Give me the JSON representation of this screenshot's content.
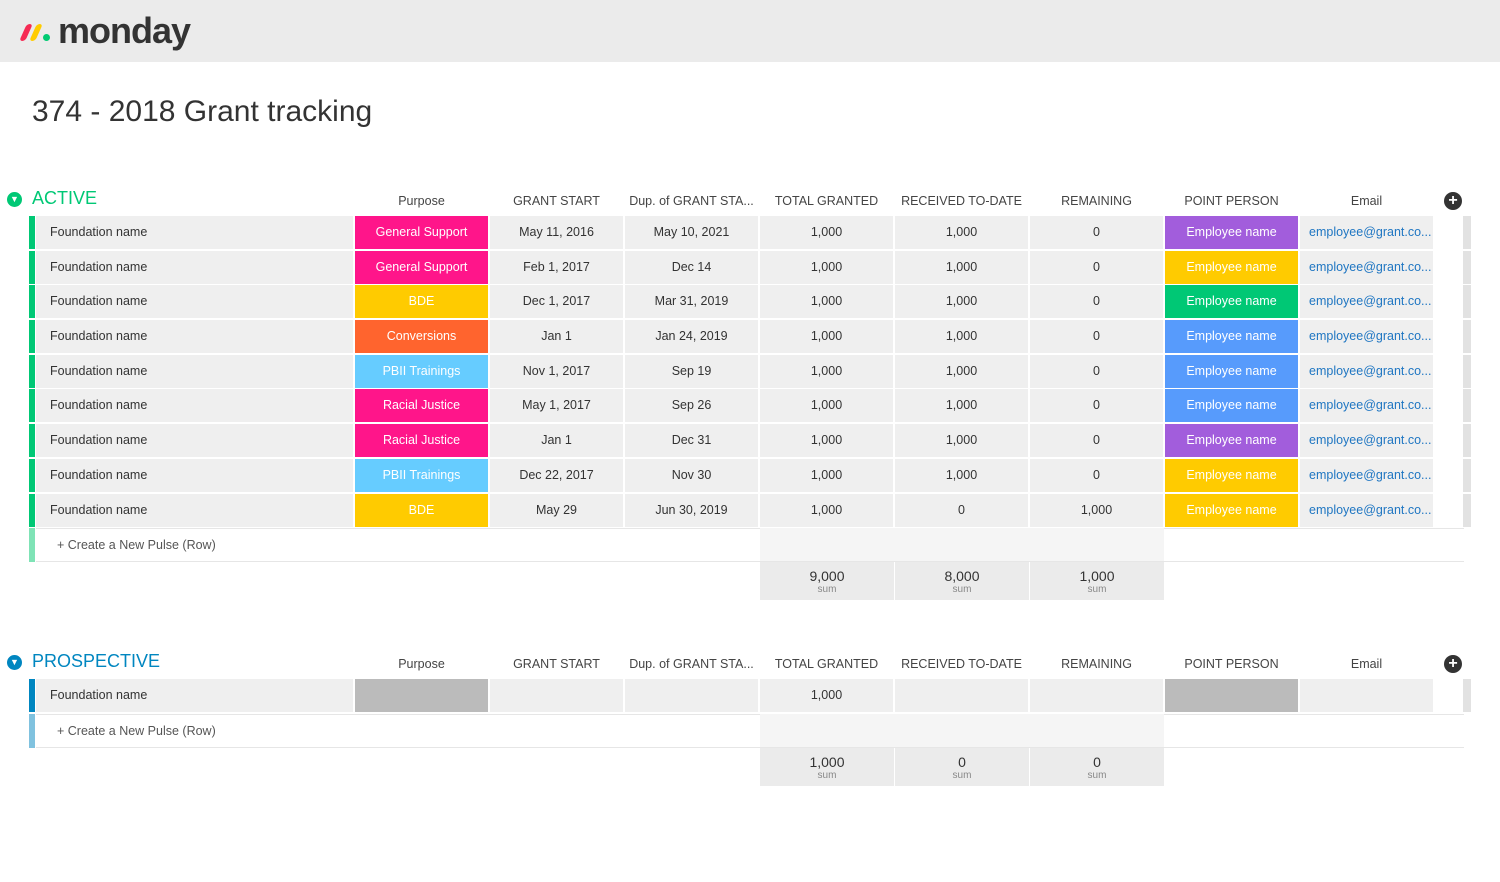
{
  "app": {
    "logo_text": "monday"
  },
  "board": {
    "title": "374 - 2018 Grant tracking"
  },
  "colors": {
    "active": "#00c875",
    "prospective": "#0086c0",
    "status_pink": "#ff158a",
    "status_yellow": "#ffcb00",
    "status_orange": "#ff642e",
    "status_lightblue": "#66ccff",
    "person_purple": "#a25ddc",
    "person_yellow": "#ffcb00",
    "person_green": "#00c875",
    "person_blue": "#579bfc",
    "empty_gray": "#bbbbbb",
    "link_blue": "#1f76c2"
  },
  "columns": [
    "Purpose",
    "GRANT START",
    "Dup. of GRANT STA...",
    "TOTAL GRANTED",
    "RECEIVED TO-DATE",
    "REMAINING",
    "POINT PERSON",
    "Email"
  ],
  "create_label": "+ Create a New Pulse (Row)",
  "sum_label": "sum",
  "groups": [
    {
      "title": "ACTIVE",
      "color": "#00c875",
      "light_color": "#7fe3b6",
      "rows": [
        {
          "name": "Foundation name",
          "purpose": "General Support",
          "purpose_color": "#ff158a",
          "start": "May 11, 2016",
          "dup": "May 10, 2021",
          "total": "1,000",
          "received": "1,000",
          "remaining": "0",
          "person": "Employee name",
          "person_color": "#a25ddc",
          "email": "employee@grant.co..."
        },
        {
          "name": "Foundation name",
          "purpose": "General Support",
          "purpose_color": "#ff158a",
          "start": "Feb 1, 2017",
          "dup": "Dec 14",
          "total": "1,000",
          "received": "1,000",
          "remaining": "0",
          "person": "Employee name",
          "person_color": "#ffcb00",
          "email": "employee@grant.co..."
        },
        {
          "name": "Foundation name",
          "purpose": "BDE",
          "purpose_color": "#ffcb00",
          "start": "Dec 1, 2017",
          "dup": "Mar 31, 2019",
          "total": "1,000",
          "received": "1,000",
          "remaining": "0",
          "person": "Employee name",
          "person_color": "#00c875",
          "email": "employee@grant.co..."
        },
        {
          "name": "Foundation name",
          "purpose": "Conversions",
          "purpose_color": "#ff642e",
          "start": "Jan 1",
          "dup": "Jan 24, 2019",
          "total": "1,000",
          "received": "1,000",
          "remaining": "0",
          "person": "Employee name",
          "person_color": "#579bfc",
          "email": "employee@grant.co..."
        },
        {
          "name": "Foundation name",
          "purpose": "PBII Trainings",
          "purpose_color": "#66ccff",
          "start": "Nov 1, 2017",
          "dup": "Sep 19",
          "total": "1,000",
          "received": "1,000",
          "remaining": "0",
          "person": "Employee name",
          "person_color": "#579bfc",
          "email": "employee@grant.co..."
        },
        {
          "name": "Foundation name",
          "purpose": "Racial Justice",
          "purpose_color": "#ff158a",
          "start": "May 1, 2017",
          "dup": "Sep 26",
          "total": "1,000",
          "received": "1,000",
          "remaining": "0",
          "person": "Employee name",
          "person_color": "#579bfc",
          "email": "employee@grant.co..."
        },
        {
          "name": "Foundation name",
          "purpose": "Racial Justice",
          "purpose_color": "#ff158a",
          "start": "Jan 1",
          "dup": "Dec 31",
          "total": "1,000",
          "received": "1,000",
          "remaining": "0",
          "person": "Employee name",
          "person_color": "#a25ddc",
          "email": "employee@grant.co..."
        },
        {
          "name": "Foundation name",
          "purpose": "PBII Trainings",
          "purpose_color": "#66ccff",
          "start": "Dec 22, 2017",
          "dup": "Nov 30",
          "total": "1,000",
          "received": "1,000",
          "remaining": "0",
          "person": "Employee name",
          "person_color": "#ffcb00",
          "email": "employee@grant.co..."
        },
        {
          "name": "Foundation name",
          "purpose": "BDE",
          "purpose_color": "#ffcb00",
          "start": "May 29",
          "dup": "Jun 30, 2019",
          "total": "1,000",
          "received": "0",
          "remaining": "1,000",
          "person": "Employee name",
          "person_color": "#ffcb00",
          "email": "employee@grant.co..."
        }
      ],
      "sums": {
        "total": "9,000",
        "received": "8,000",
        "remaining": "1,000"
      }
    },
    {
      "title": "PROSPECTIVE",
      "color": "#0086c0",
      "light_color": "#80c2df",
      "rows": [
        {
          "name": "Foundation name",
          "purpose": "",
          "purpose_color": "#bbbbbb",
          "start": "",
          "dup": "",
          "total": "1,000",
          "received": "",
          "remaining": "",
          "person": "",
          "person_color": "#bbbbbb",
          "email": ""
        }
      ],
      "sums": {
        "total": "1,000",
        "received": "0",
        "remaining": "0"
      }
    }
  ]
}
